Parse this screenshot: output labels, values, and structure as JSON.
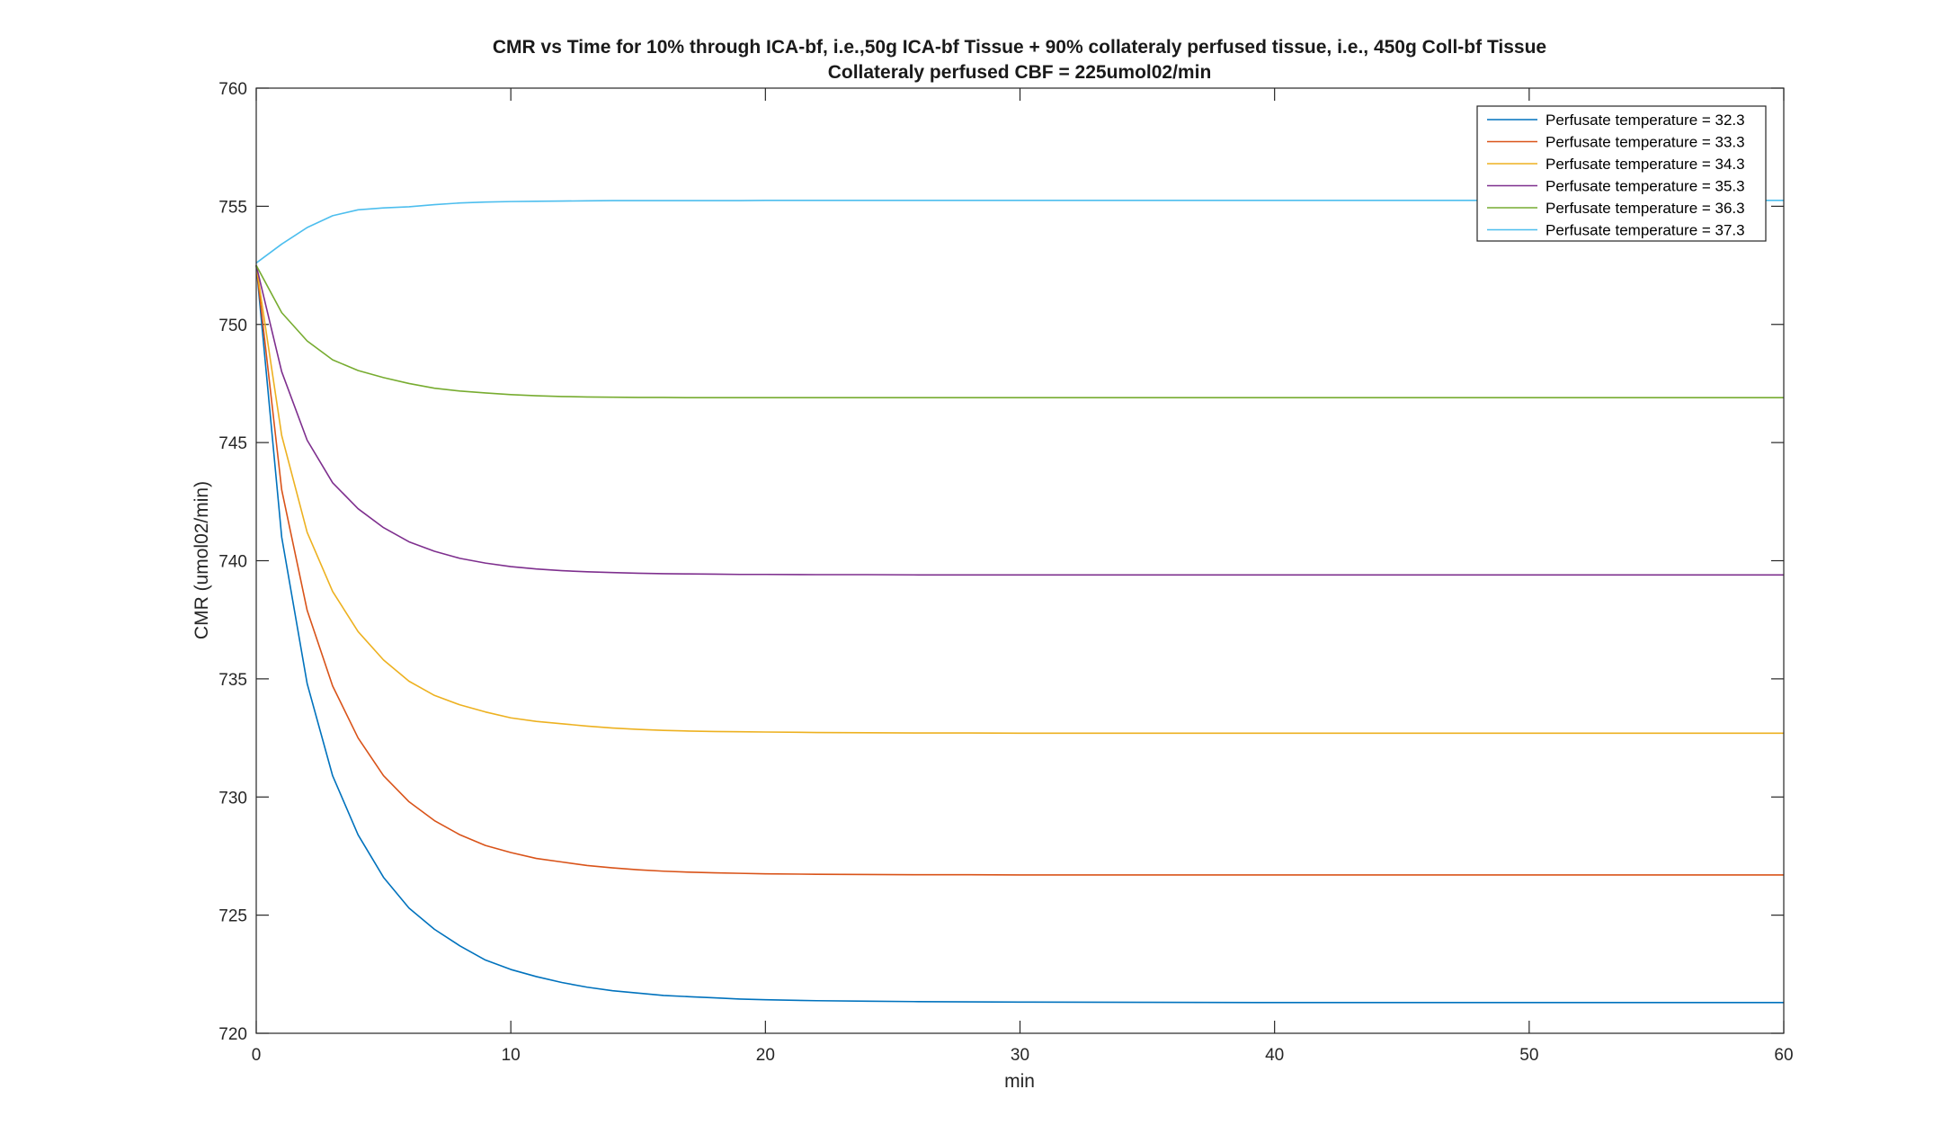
{
  "chart_data": {
    "type": "line",
    "title": "CMR vs Time for 10% through ICA-bf, i.e.,50g ICA-bf Tissue + 90% collateraly perfused tissue, i.e., 450g Coll-bf Tissue",
    "subtitle": "Collateraly perfused CBF = 225umol02/min",
    "xlabel": "min",
    "ylabel": "CMR (umol02/min)",
    "xlim": [
      0,
      60
    ],
    "ylim": [
      720,
      760
    ],
    "xticks": [
      0,
      10,
      20,
      30,
      40,
      50,
      60
    ],
    "yticks": [
      720,
      725,
      730,
      735,
      740,
      745,
      750,
      755,
      760
    ],
    "grid": false,
    "legend_position": "top-right",
    "x": [
      0,
      1,
      2,
      3,
      4,
      5,
      6,
      7,
      8,
      9,
      10,
      11,
      12,
      13,
      14,
      15,
      16,
      17,
      18,
      19,
      20,
      22,
      24,
      26,
      28,
      30,
      35,
      40,
      45,
      50,
      55,
      60
    ],
    "series": [
      {
        "name": "Perfusate temperature = 32.3",
        "color": "#0072BD",
        "values": [
          752.5,
          741.0,
          734.8,
          730.9,
          728.4,
          726.6,
          725.3,
          724.4,
          723.7,
          723.1,
          722.7,
          722.4,
          722.15,
          721.95,
          721.8,
          721.7,
          721.6,
          721.55,
          721.5,
          721.45,
          721.42,
          721.38,
          721.36,
          721.34,
          721.33,
          721.32,
          721.31,
          721.3,
          721.3,
          721.3,
          721.3,
          721.3
        ]
      },
      {
        "name": "Perfusate temperature = 33.3",
        "color": "#D95319",
        "values": [
          752.5,
          743.0,
          737.9,
          734.7,
          732.5,
          730.9,
          729.8,
          729.0,
          728.4,
          727.95,
          727.65,
          727.4,
          727.25,
          727.1,
          727.0,
          726.92,
          726.86,
          726.82,
          726.79,
          726.77,
          726.75,
          726.73,
          726.72,
          726.71,
          726.71,
          726.7,
          726.7,
          726.7,
          726.7,
          726.7,
          726.7,
          726.7
        ]
      },
      {
        "name": "Perfusate temperature = 34.3",
        "color": "#EDB120",
        "values": [
          752.5,
          745.3,
          741.2,
          738.7,
          737.0,
          735.8,
          734.9,
          734.3,
          733.9,
          733.6,
          733.35,
          733.2,
          733.1,
          733.0,
          732.92,
          732.86,
          732.82,
          732.79,
          732.77,
          732.76,
          732.75,
          732.73,
          732.72,
          732.71,
          732.71,
          732.7,
          732.7,
          732.7,
          732.7,
          732.7,
          732.7,
          732.7
        ]
      },
      {
        "name": "Perfusate temperature = 35.3",
        "color": "#7E2F8E",
        "values": [
          752.5,
          748.0,
          745.1,
          743.3,
          742.2,
          741.4,
          740.8,
          740.4,
          740.1,
          739.9,
          739.75,
          739.65,
          739.58,
          739.53,
          739.5,
          739.47,
          739.45,
          739.44,
          739.43,
          739.42,
          739.42,
          739.41,
          739.41,
          739.4,
          739.4,
          739.4,
          739.4,
          739.4,
          739.4,
          739.4,
          739.4,
          739.4
        ]
      },
      {
        "name": "Perfusate temperature = 36.3",
        "color": "#77AC30",
        "values": [
          752.5,
          750.5,
          749.3,
          748.5,
          748.05,
          747.75,
          747.5,
          747.3,
          747.18,
          747.1,
          747.03,
          746.98,
          746.95,
          746.93,
          746.92,
          746.91,
          746.91,
          746.9,
          746.9,
          746.9,
          746.9,
          746.9,
          746.9,
          746.9,
          746.9,
          746.9,
          746.9,
          746.9,
          746.9,
          746.9,
          746.9,
          746.9
        ]
      },
      {
        "name": "Perfusate temperature = 37.3",
        "color": "#4DBEEE",
        "values": [
          752.6,
          753.4,
          754.1,
          754.6,
          754.85,
          754.93,
          754.98,
          755.07,
          755.14,
          755.18,
          755.2,
          755.21,
          755.22,
          755.23,
          755.24,
          755.24,
          755.24,
          755.24,
          755.24,
          755.24,
          755.25,
          755.25,
          755.25,
          755.25,
          755.25,
          755.25,
          755.25,
          755.25,
          755.25,
          755.25,
          755.25,
          755.25
        ]
      }
    ]
  }
}
